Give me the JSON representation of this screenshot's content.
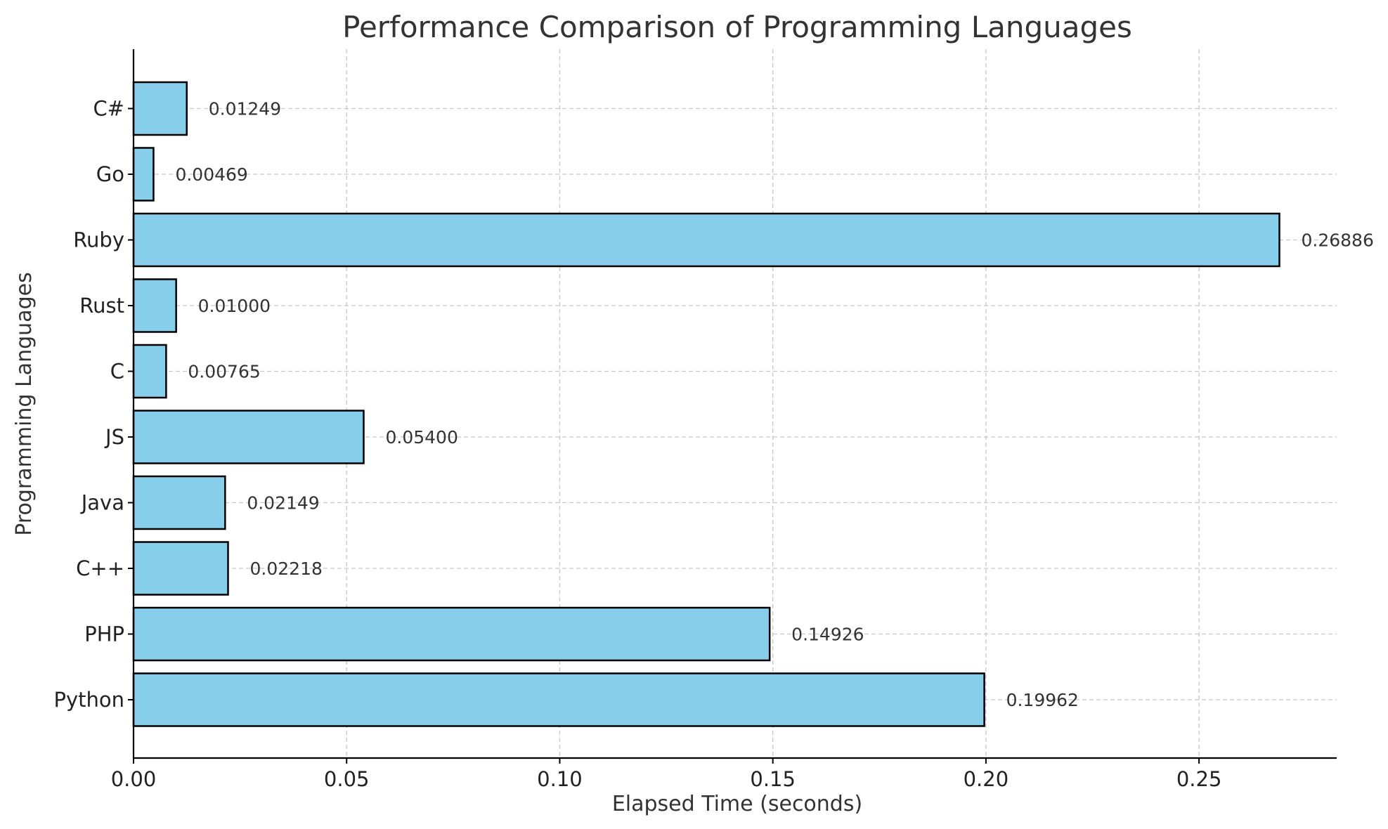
{
  "chart_data": {
    "type": "bar",
    "orientation": "horizontal",
    "title": "Performance Comparison of Programming Languages",
    "xlabel": "Elapsed Time (seconds)",
    "ylabel": "Programming Languages",
    "categories": [
      "Python",
      "PHP",
      "C++",
      "Java",
      "JS",
      "C",
      "Rust",
      "Ruby",
      "Go",
      "C#"
    ],
    "values": [
      0.19962,
      0.14926,
      0.02218,
      0.02149,
      0.054,
      0.00765,
      0.01,
      0.26886,
      0.00469,
      0.01249
    ],
    "value_labels": [
      "0.19962",
      "0.14926",
      "0.02218",
      "0.02149",
      "0.05400",
      "0.00765",
      "0.01000",
      "0.26886",
      "0.00469",
      "0.01249"
    ],
    "xlim": [
      0,
      0.2823
    ],
    "xticks": [
      0,
      0.05,
      0.1,
      0.15,
      0.2,
      0.25
    ],
    "xtick_labels": [
      "0.00",
      "0.05",
      "0.10",
      "0.15",
      "0.20",
      "0.25"
    ],
    "grid": true,
    "bar_color": "#87CEEB",
    "bar_edge_color": "#000000"
  }
}
